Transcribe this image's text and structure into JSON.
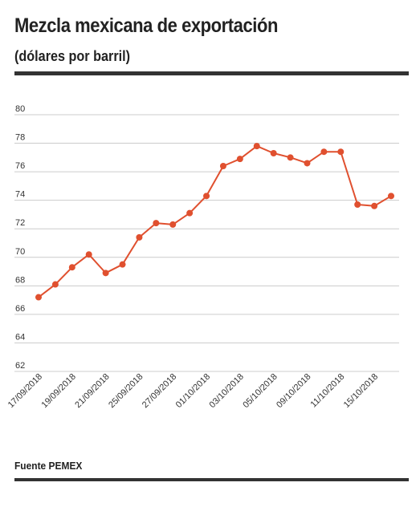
{
  "header": {
    "title": "Mezcla mexicana de exportación",
    "subtitle": "(dólares por barril)"
  },
  "footer": {
    "source": "Fuente PEMEX"
  },
  "colors": {
    "series": "#e0502f",
    "grid": "#cccccc",
    "rule": "#333333"
  },
  "chart_data": {
    "type": "line",
    "title": "Mezcla mexicana de exportación",
    "subtitle": "(dólares por barril)",
    "xlabel": "",
    "ylabel": "",
    "ylim": [
      62,
      80
    ],
    "yticks": [
      62,
      64,
      66,
      68,
      70,
      72,
      74,
      76,
      78,
      80
    ],
    "grid": true,
    "x_tick_labels": [
      "17/09/2018",
      "19/09/2018",
      "21/09/2018",
      "25/09/2018",
      "27/09/2018",
      "01/10/2018",
      "03/10/2018",
      "05/10/2018",
      "09/10/2018",
      "11/10/2018",
      "15/10/2018"
    ],
    "x_tick_positions": [
      0,
      2,
      4,
      6,
      8,
      10,
      12,
      14,
      16,
      18,
      20
    ],
    "series": [
      {
        "values": [
          67.2,
          68.1,
          69.3,
          70.2,
          68.9,
          69.5,
          71.4,
          72.4,
          72.3,
          73.1,
          74.3,
          76.4,
          76.9,
          77.8,
          77.3,
          77.0,
          76.6,
          77.4,
          77.4,
          73.7,
          73.6,
          74.3
        ]
      }
    ]
  }
}
